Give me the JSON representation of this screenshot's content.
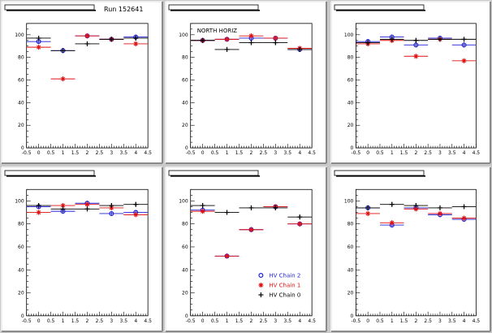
{
  "run_label": "Run 152641",
  "colors": {
    "HV Chain 2": "#1f1fd6",
    "HV Chain 1": "#e01010",
    "HV Chain 0": "#000000"
  },
  "legend": [
    {
      "name": "HV Chain 2",
      "marker": "o",
      "color": "#1f1fd6"
    },
    {
      "name": "HV Chain 1",
      "marker": "*",
      "color": "#e01010"
    },
    {
      "name": "HV Chain 0",
      "marker": "+",
      "color": "#000000"
    }
  ],
  "chart_data": [
    {
      "type": "scatter",
      "header": "",
      "annotation": "",
      "x_ticks": [
        "-0.5",
        "0",
        "0.5",
        "1",
        "1.5",
        "2",
        "2.5",
        "3",
        "3.5",
        "4",
        "4.5"
      ],
      "y_ticks": [
        "0",
        "20",
        "40",
        "60",
        "80",
        "100"
      ],
      "xlim": [
        -0.5,
        4.5
      ],
      "ylim": [
        0,
        110
      ],
      "series": [
        {
          "name": "HV Chain 2",
          "x": [
            0,
            1,
            2,
            3,
            4
          ],
          "y": [
            94,
            86,
            99,
            96,
            98
          ]
        },
        {
          "name": "HV Chain 1",
          "x": [
            0,
            1,
            2,
            3,
            4
          ],
          "y": [
            89,
            61,
            99,
            96,
            92
          ]
        },
        {
          "name": "HV Chain 0",
          "x": [
            0,
            1,
            2,
            3,
            4
          ],
          "y": [
            97,
            86,
            92,
            96,
            97
          ]
        }
      ]
    },
    {
      "type": "scatter",
      "header": "",
      "annotation": "NORTH HORIZ",
      "x_ticks": [
        "-0.5",
        "0",
        "0.5",
        "1",
        "1.5",
        "2",
        "2.5",
        "3",
        "3.5",
        "4",
        "4.5"
      ],
      "y_ticks": [
        "0",
        "20",
        "40",
        "60",
        "80",
        "100"
      ],
      "xlim": [
        -0.5,
        4.5
      ],
      "ylim": [
        0,
        110
      ],
      "series": [
        {
          "name": "HV Chain 2",
          "x": [
            0,
            1,
            2,
            3,
            4
          ],
          "y": [
            95,
            96,
            97,
            97,
            87
          ]
        },
        {
          "name": "HV Chain 1",
          "x": [
            0,
            1,
            2,
            3,
            4
          ],
          "y": [
            95,
            96,
            99,
            97,
            88
          ]
        },
        {
          "name": "HV Chain 0",
          "x": [
            0,
            1,
            2,
            3,
            4
          ],
          "y": [
            95,
            87,
            93,
            93,
            87
          ]
        }
      ]
    },
    {
      "type": "scatter",
      "header": "",
      "annotation": "",
      "x_ticks": [
        "-0.5",
        "0",
        "0.5",
        "1",
        "1.5",
        "2",
        "2.5",
        "3",
        "3.5",
        "4",
        "4.5"
      ],
      "y_ticks": [
        "0",
        "20",
        "40",
        "60",
        "80",
        "100"
      ],
      "xlim": [
        -0.5,
        4.5
      ],
      "ylim": [
        0,
        110
      ],
      "series": [
        {
          "name": "HV Chain 2",
          "x": [
            0,
            1,
            2,
            3,
            4
          ],
          "y": [
            94,
            98,
            91,
            97,
            91
          ]
        },
        {
          "name": "HV Chain 1",
          "x": [
            0,
            1,
            2,
            3,
            4
          ],
          "y": [
            92,
            95,
            81,
            96,
            77
          ]
        },
        {
          "name": "HV Chain 0",
          "x": [
            0,
            1,
            2,
            3,
            4
          ],
          "y": [
            93,
            96,
            95,
            96,
            96
          ]
        }
      ]
    },
    {
      "type": "scatter",
      "header": "",
      "annotation": "",
      "x_ticks": [
        "-0.5",
        "0",
        "0.5",
        "1",
        "1.5",
        "2",
        "2.5",
        "3",
        "3.5",
        "4",
        "4.5"
      ],
      "y_ticks": [
        "0",
        "20",
        "40",
        "60",
        "80",
        "100"
      ],
      "xlim": [
        -0.5,
        4.5
      ],
      "ylim": [
        0,
        110
      ],
      "series": [
        {
          "name": "HV Chain 2",
          "x": [
            0,
            1,
            2,
            3,
            4
          ],
          "y": [
            95,
            91,
            98,
            89,
            90
          ]
        },
        {
          "name": "HV Chain 1",
          "x": [
            0,
            1,
            2,
            3,
            4
          ],
          "y": [
            90,
            96,
            97,
            94,
            88
          ]
        },
        {
          "name": "HV Chain 0",
          "x": [
            0,
            1,
            2,
            3,
            4
          ],
          "y": [
            96,
            93,
            93,
            96,
            97
          ]
        }
      ]
    },
    {
      "type": "scatter",
      "header": "",
      "annotation": "",
      "x_ticks": [
        "-0.5",
        "0",
        "0.5",
        "1",
        "1.5",
        "2",
        "2.5",
        "3",
        "3.5",
        "4",
        "4.5"
      ],
      "y_ticks": [
        "0",
        "20",
        "40",
        "60",
        "80",
        "100"
      ],
      "xlim": [
        -0.5,
        4.5
      ],
      "ylim": [
        0,
        110
      ],
      "series": [
        {
          "name": "HV Chain 2",
          "x": [
            0,
            1,
            2,
            3,
            4
          ],
          "y": [
            92,
            52,
            75,
            95,
            80
          ]
        },
        {
          "name": "HV Chain 1",
          "x": [
            0,
            1,
            2,
            3,
            4
          ],
          "y": [
            91,
            52,
            75,
            95,
            80
          ]
        },
        {
          "name": "HV Chain 0",
          "x": [
            0,
            1,
            2,
            3,
            4
          ],
          "y": [
            96,
            90,
            94,
            94,
            86
          ]
        }
      ]
    },
    {
      "type": "scatter",
      "header": "",
      "annotation": "",
      "x_ticks": [
        "-0.5",
        "0",
        "0.5",
        "1",
        "1.5",
        "2",
        "2.5",
        "3",
        "3.5",
        "4",
        "4.5"
      ],
      "y_ticks": [
        "0",
        "20",
        "40",
        "60",
        "80",
        "100"
      ],
      "xlim": [
        -0.5,
        4.5
      ],
      "ylim": [
        0,
        110
      ],
      "series": [
        {
          "name": "HV Chain 2",
          "x": [
            0,
            1,
            2,
            3,
            4
          ],
          "y": [
            94,
            79,
            94,
            88,
            84
          ]
        },
        {
          "name": "HV Chain 1",
          "x": [
            0,
            1,
            2,
            3,
            4
          ],
          "y": [
            89,
            81,
            93,
            89,
            85
          ]
        },
        {
          "name": "HV Chain 0",
          "x": [
            0,
            1,
            2,
            3,
            4
          ],
          "y": [
            94,
            97,
            96,
            94,
            95
          ]
        }
      ]
    }
  ]
}
